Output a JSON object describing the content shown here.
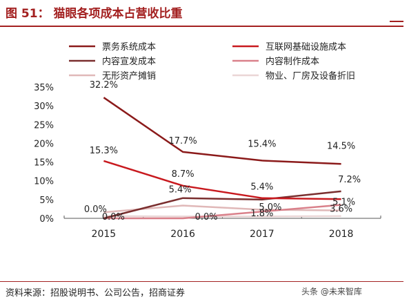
{
  "figure": {
    "title": "图 51：  猫眼各项成本占营收比重",
    "source": "资料来源：招股说明书、公司公告，招商证券",
    "watermark": "头条 @未来智库"
  },
  "chart_data": {
    "type": "line",
    "categories": [
      "2015",
      "2016",
      "2017",
      "2018"
    ],
    "ylim": [
      0,
      35
    ],
    "yticks": [
      0,
      5,
      10,
      15,
      20,
      25,
      30,
      35
    ],
    "ytick_labels": [
      "0%",
      "5%",
      "10%",
      "15%",
      "20%",
      "25%",
      "30%",
      "35%"
    ],
    "legend_position": "top",
    "grid": false,
    "series": [
      {
        "name": "票务系统成本",
        "color": "#8b1a1a",
        "values": [
          32.2,
          17.7,
          15.4,
          14.5
        ],
        "labels": [
          "32.2%",
          "17.7%",
          "15.4%",
          "14.5%"
        ]
      },
      {
        "name": "互联网基础设施成本",
        "color": "#c8191e",
        "values": [
          15.3,
          8.7,
          5.4,
          5.1
        ],
        "labels": [
          "15.3%",
          "8.7%",
          "5.4%",
          "5.1%"
        ]
      },
      {
        "name": "内容宣发成本",
        "color": "#7a2e2e",
        "values": [
          0.0,
          5.4,
          5.0,
          7.2
        ],
        "labels": [
          "0.0%",
          "5.4%",
          "5.0%",
          "7.2%"
        ]
      },
      {
        "name": "内容制作成本",
        "color": "#d9808a",
        "values": [
          0.0,
          0.0,
          1.8,
          3.6
        ],
        "labels": [
          "0.0%",
          "0.0%",
          "1.8%",
          "3.6%"
        ]
      },
      {
        "name": "无形资产摊销",
        "color": "#e0b8b8",
        "values": [
          1.6,
          3.4,
          2.3,
          2.1
        ],
        "labels": []
      },
      {
        "name": "物业、厂房及设备折旧",
        "color": "#ead6d6",
        "values": [
          0.6,
          0.5,
          0.5,
          0.6
        ],
        "labels": []
      }
    ]
  }
}
